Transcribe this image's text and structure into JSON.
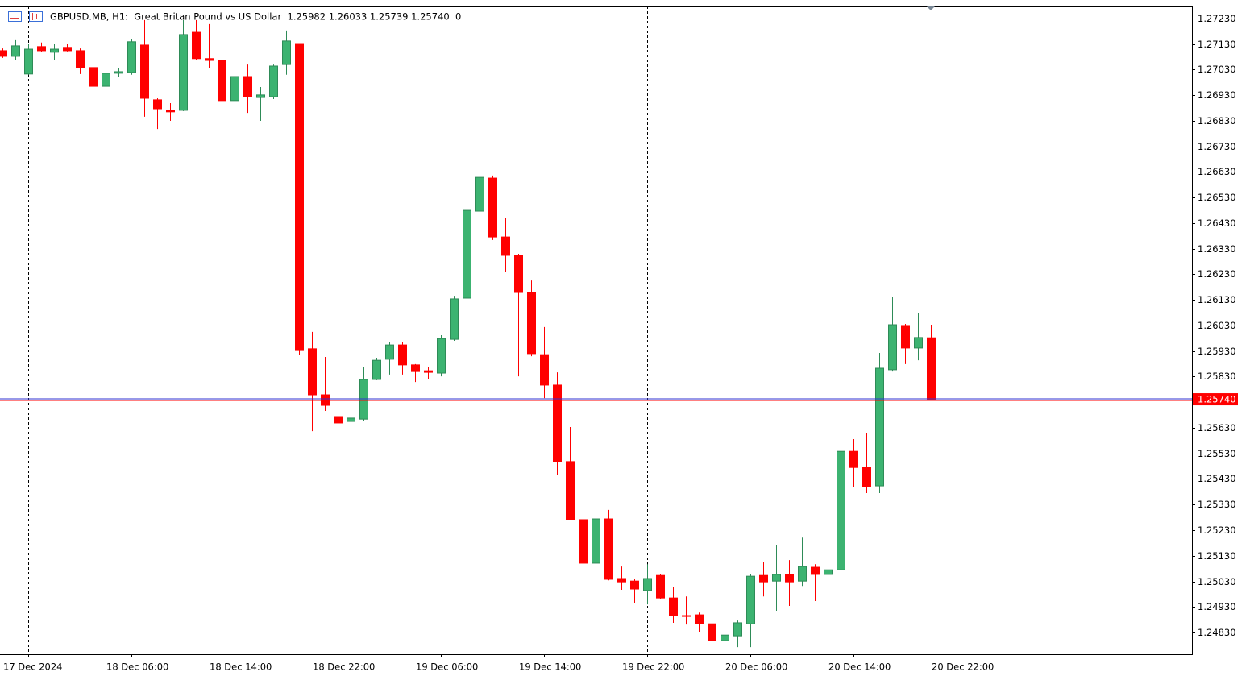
{
  "chart_data": {
    "type": "candlestick",
    "title": "GBPUSD.MB, H1:  Great Britan Pound vs US Dollar  1.25982 1.26033 1.25739 1.25740  0",
    "categories": [
      null,
      null,
      "17 Dec 2024",
      null,
      null,
      null,
      null,
      null,
      null,
      null,
      "18 Dec 06:00",
      null,
      null,
      null,
      null,
      null,
      null,
      null,
      "18 Dec 14:00",
      null,
      null,
      null,
      null,
      null,
      null,
      null,
      "18 Dec 22:00",
      null,
      null,
      null,
      null,
      null,
      null,
      null,
      "19 Dec 06:00",
      null,
      null,
      null,
      null,
      null,
      null,
      null,
      "19 Dec 14:00",
      null,
      null,
      null,
      null,
      null,
      null,
      null,
      "19 Dec 22:00",
      null,
      null,
      null,
      null,
      null,
      null,
      null,
      "20 Dec 06:00",
      null,
      null,
      null,
      null,
      null,
      null,
      null,
      "20 Dec 14:00",
      null,
      null,
      null,
      null,
      null,
      null,
      null,
      "20 Dec 22:00"
    ],
    "open": [
      1.27104,
      1.27082,
      1.27013,
      1.2712,
      1.27098,
      1.27117,
      1.27104,
      1.27038,
      1.26965,
      1.27016,
      1.27019,
      1.27126,
      1.26912,
      1.26871,
      1.26871,
      1.27176,
      1.27073,
      1.27066,
      1.26909,
      1.27003,
      1.26921,
      1.26924,
      1.2705,
      1.27132,
      1.25939,
      1.25759,
      1.25674,
      1.25655,
      1.25664,
      1.25819,
      1.25898,
      1.25954,
      1.25876,
      1.25853,
      1.25844,
      1.25976,
      1.26137,
      1.26477,
      1.26606,
      1.26376,
      1.26304,
      1.26159,
      1.25916,
      1.25797,
      1.25498,
      1.25271,
      1.25101,
      1.25274,
      1.25041,
      1.25031,
      1.24994,
      1.25053,
      1.24965,
      1.24896,
      1.24899,
      1.24864,
      1.24798,
      1.24817,
      1.24864,
      1.25053,
      1.25031,
      1.25057,
      1.25031,
      1.25085,
      1.25057,
      1.25075,
      1.25538,
      1.25475,
      1.25403,
      1.25857,
      1.2603,
      1.25942,
      1.25982,
      null,
      null
    ],
    "high": [
      1.27113,
      1.27145,
      1.27129,
      1.27136,
      1.27129,
      1.27129,
      1.27113,
      1.27038,
      1.27025,
      1.27035,
      1.27151,
      1.27224,
      1.26918,
      1.26899,
      1.27224,
      1.27224,
      1.27208,
      1.27202,
      1.27066,
      1.2705,
      1.26962,
      1.2705,
      1.27183,
      1.27132,
      1.26005,
      1.25907,
      1.25712,
      1.2579,
      1.25869,
      1.25904,
      1.25964,
      1.25967,
      1.25879,
      1.25866,
      1.25992,
      1.26146,
      1.2649,
      1.26666,
      1.26616,
      1.26449,
      1.2631,
      1.26206,
      1.26024,
      1.25847,
      1.25633,
      1.25277,
      1.25286,
      1.25309,
      1.25088,
      1.25041,
      1.25097,
      1.25057,
      1.25009,
      1.24971,
      1.24908,
      1.2489,
      1.24827,
      1.24877,
      1.2506,
      1.25107,
      1.2517,
      1.25113,
      1.25201,
      1.25097,
      1.25233,
      1.25592,
      1.25586,
      1.25608,
      1.25923,
      1.2614,
      1.26036,
      1.2608,
      1.26033,
      null,
      null
    ],
    "low": [
      1.27076,
      1.27066,
      1.2701,
      1.27098,
      1.27066,
      1.27101,
      1.27013,
      1.26962,
      1.2695,
      1.27003,
      1.2701,
      1.26846,
      1.26798,
      1.2683,
      1.26868,
      1.27066,
      1.27035,
      1.26906,
      1.26852,
      1.26861,
      1.2683,
      1.26915,
      1.2701,
      1.25916,
      1.25617,
      1.25696,
      1.25639,
      1.25633,
      1.25658,
      1.25816,
      1.25838,
      1.25838,
      1.25809,
      1.25822,
      1.25831,
      1.2597,
      1.26052,
      1.26471,
      1.26364,
      1.26241,
      1.25831,
      1.2591,
      1.25746,
      1.25447,
      1.25268,
      1.25072,
      1.25047,
      1.25034,
      1.24997,
      1.24946,
      1.2494,
      1.24959,
      1.24868,
      1.24861,
      1.24833,
      1.24751,
      1.24782,
      1.24773,
      1.24773,
      1.24971,
      1.24915,
      1.24934,
      1.25012,
      1.24953,
      1.25028,
      1.25069,
      1.254,
      1.25375,
      1.25375,
      1.2585,
      1.25879,
      1.25894,
      1.25739,
      null,
      null
    ],
    "close": [
      1.27082,
      1.27123,
      1.2711,
      1.27104,
      1.2711,
      1.27104,
      1.27038,
      1.26965,
      1.27016,
      1.27022,
      1.27139,
      1.26918,
      1.26877,
      1.26865,
      1.27167,
      1.27073,
      1.27066,
      1.26909,
      1.27003,
      1.26924,
      1.26931,
      1.27044,
      1.27142,
      1.25932,
      1.25759,
      1.25718,
      1.25649,
      1.25668,
      1.25819,
      1.25894,
      1.25954,
      1.25876,
      1.2585,
      1.25847,
      1.25979,
      1.26134,
      1.2648,
      1.26609,
      1.26376,
      1.26304,
      1.26159,
      1.2592,
      1.25797,
      1.25498,
      1.25271,
      1.25101,
      1.25274,
      1.25038,
      1.25028,
      1.25,
      1.25041,
      1.24965,
      1.24896,
      1.24893,
      1.24864,
      1.24798,
      1.2482,
      1.24868,
      1.2505,
      1.25028,
      1.25057,
      1.25028,
      1.25088,
      1.25057,
      1.25075,
      1.25538,
      1.25475,
      1.254,
      1.25863,
      1.26033,
      1.25942,
      1.25983,
      1.2574,
      null,
      null
    ],
    "up_color": "#3cb371",
    "down_color": "#ff0000",
    "ylim": [
      1.24745,
      1.27277
    ],
    "yticks": [
      {
        "value": 1.2723,
        "label": "1.27230"
      },
      {
        "value": 1.2713,
        "label": "1.27130"
      },
      {
        "value": 1.2703,
        "label": "1.27030"
      },
      {
        "value": 1.2693,
        "label": "1.26930"
      },
      {
        "value": 1.2683,
        "label": "1.26830"
      },
      {
        "value": 1.2673,
        "label": "1.26730"
      },
      {
        "value": 1.2663,
        "label": "1.26630"
      },
      {
        "value": 1.2653,
        "label": "1.26530"
      },
      {
        "value": 1.2643,
        "label": "1.26430"
      },
      {
        "value": 1.2633,
        "label": "1.26330"
      },
      {
        "value": 1.2623,
        "label": "1.26230"
      },
      {
        "value": 1.2613,
        "label": "1.26130"
      },
      {
        "value": 1.2603,
        "label": "1.26030"
      },
      {
        "value": 1.2593,
        "label": "1.25930"
      },
      {
        "value": 1.2583,
        "label": "1.25830"
      },
      {
        "value": 1.2563,
        "label": "1.25630"
      },
      {
        "value": 1.2553,
        "label": "1.25530"
      },
      {
        "value": 1.2543,
        "label": "1.25430"
      },
      {
        "value": 1.2533,
        "label": "1.25330"
      },
      {
        "value": 1.2523,
        "label": "1.25230"
      },
      {
        "value": 1.2513,
        "label": "1.25130"
      },
      {
        "value": 1.2503,
        "label": "1.25030"
      },
      {
        "value": 1.2493,
        "label": "1.24930"
      },
      {
        "value": 1.2483,
        "label": "1.24830"
      }
    ],
    "last_price": {
      "value": 1.2574,
      "label": "1.25740"
    },
    "xgrid": true
  }
}
